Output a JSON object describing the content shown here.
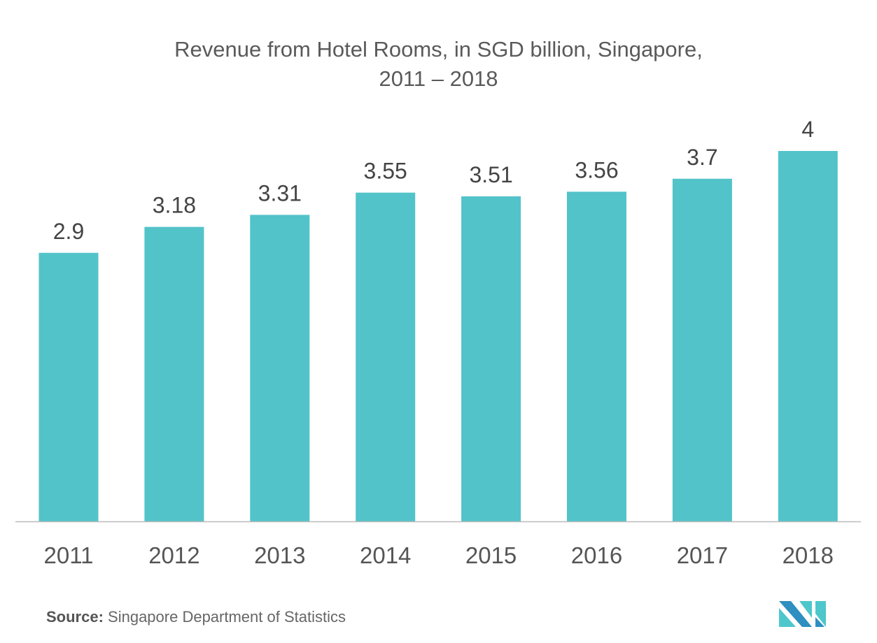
{
  "chart_data": {
    "type": "bar",
    "title": "Revenue from Hotel Rooms, in SGD billion, Singapore,",
    "subtitle": "2011 – 2018",
    "categories": [
      "2011",
      "2012",
      "2013",
      "2014",
      "2015",
      "2016",
      "2017",
      "2018"
    ],
    "values": [
      2.9,
      3.18,
      3.31,
      3.55,
      3.51,
      3.56,
      3.7,
      4
    ],
    "value_labels": [
      "2.9",
      "3.18",
      "3.31",
      "3.55",
      "3.51",
      "3.56",
      "3.7",
      "4"
    ],
    "xlabel": "",
    "ylabel": "",
    "ylim": [
      0,
      4
    ],
    "grid": false,
    "bar_color": "#52c3c9"
  },
  "source": {
    "label": "Source:",
    "text": " Singapore Department of Statistics"
  }
}
